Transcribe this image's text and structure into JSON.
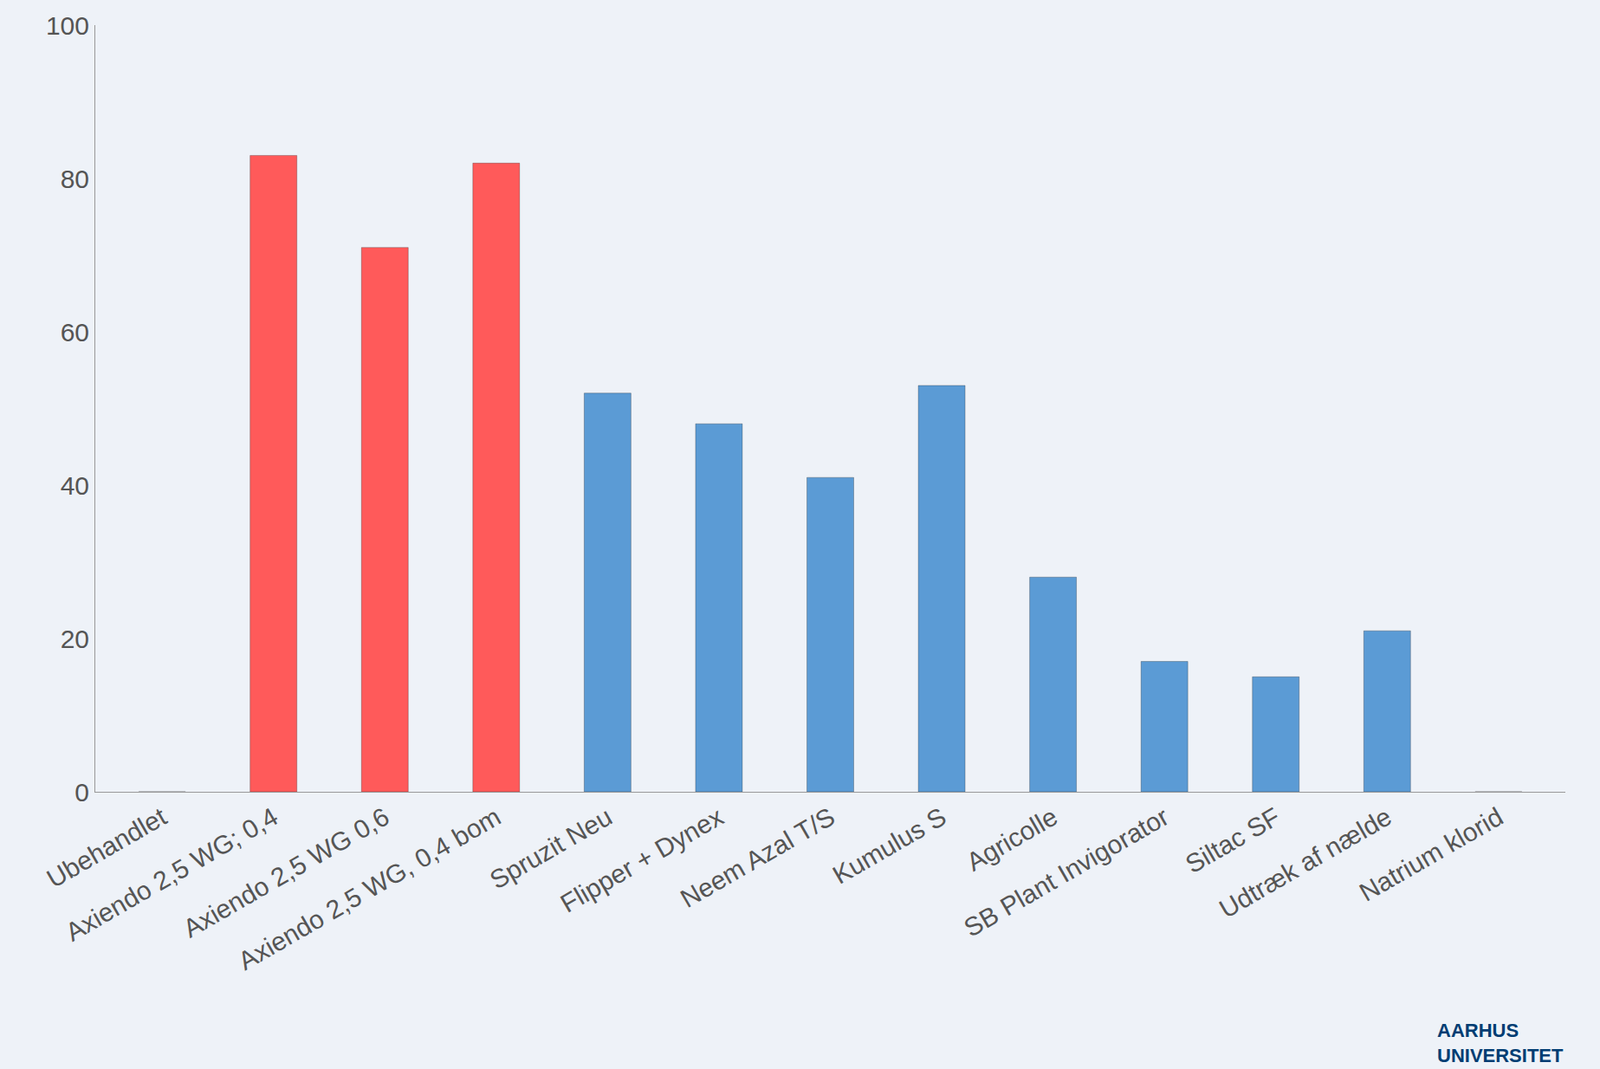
{
  "chart_data": {
    "type": "bar",
    "categories": [
      "Ubehandlet",
      "Axiendo 2,5 WG; 0,4",
      "Axiendo 2,5 WG 0,6",
      "Axiendo 2,5 WG, 0,4 bom",
      "Spruzit Neu",
      "Flipper + Dynex",
      "Neem Azal T/S",
      "Kumulus S",
      "Agricolle",
      "SB Plant Invigorator",
      "Siltac SF",
      "Udtræk af nælde",
      "Natrium klorid"
    ],
    "values": [
      0,
      83,
      71,
      82,
      52,
      48,
      41,
      53,
      28,
      17,
      15,
      21,
      0
    ],
    "colors": [
      "#5b9bd5",
      "#ff5a5a",
      "#ff5a5a",
      "#ff5a5a",
      "#5b9bd5",
      "#5b9bd5",
      "#5b9bd5",
      "#5b9bd5",
      "#5b9bd5",
      "#5b9bd5",
      "#5b9bd5",
      "#5b9bd5",
      "#5b9bd5"
    ],
    "ylim": [
      0,
      100
    ],
    "yticks": [
      0,
      20,
      40,
      60,
      80,
      100
    ],
    "grid": false,
    "annotations": [
      {
        "text": "AARHUS UNIVERSITET"
      }
    ]
  }
}
